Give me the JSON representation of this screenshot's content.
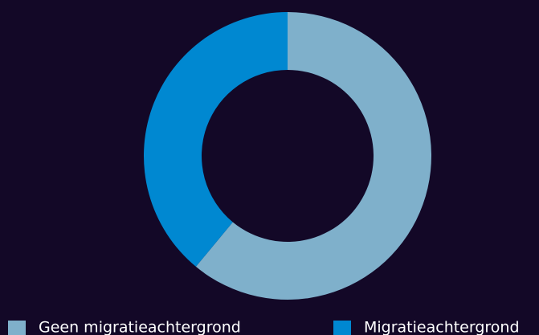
{
  "chart_data": {
    "type": "donut",
    "categories": [
      "Geen migratieachtergrond",
      "Migratieachtergrond"
    ],
    "values": [
      61,
      39
    ],
    "colors": [
      "#7fb0cb",
      "#0088d1"
    ],
    "legend": "bottom"
  }
}
